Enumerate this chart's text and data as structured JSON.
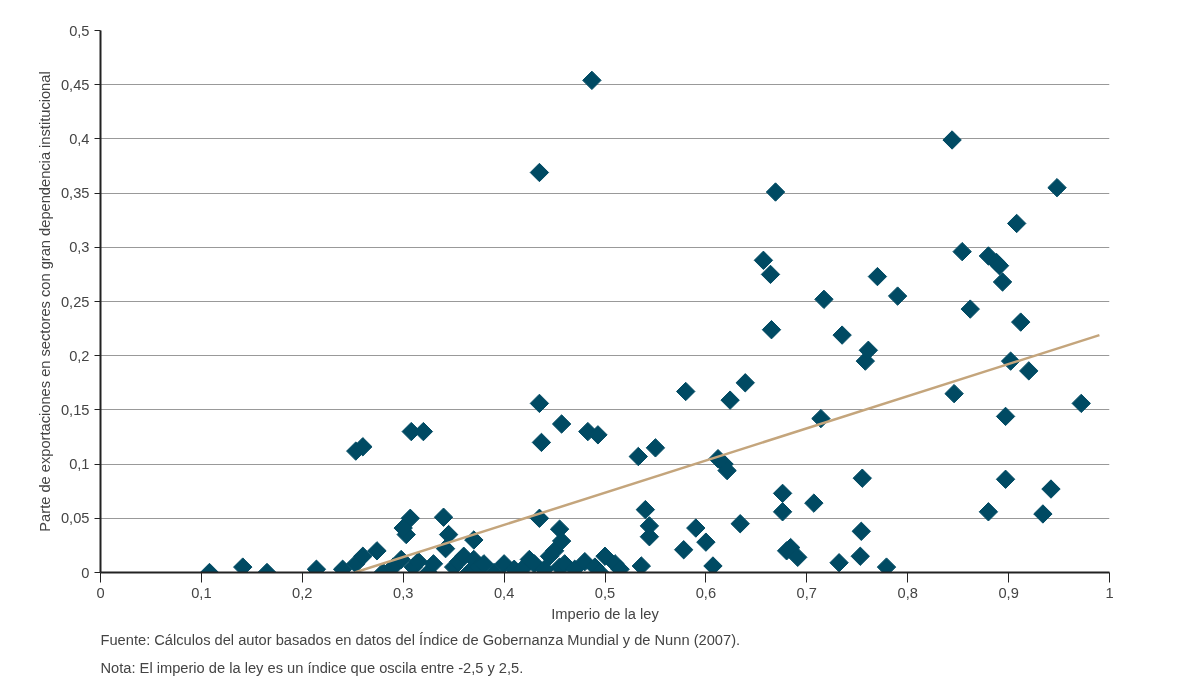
{
  "chart_data": {
    "type": "scatter",
    "xlabel": "Imperio de la ley",
    "ylabel": "Parte de exportaciones en sectores con gran dependencia institucional",
    "annotations": [
      "Fuente: Cálculos del autor basados en datos del Índice de Gobernanza Mundial y de Nunn (2007).",
      "Nota: El imperio de la ley es un índice que oscila entre -2,5 y 2,5."
    ],
    "xlim": [
      0,
      1
    ],
    "ylim": [
      0,
      0.5
    ],
    "xticks": [
      0,
      {
        "value": 0.1,
        "label": "0,1"
      },
      {
        "value": 0.2,
        "label": "0,2"
      },
      {
        "value": 0.3,
        "label": "0,3"
      },
      {
        "value": 0.4,
        "label": "0,4"
      },
      {
        "value": 0.5,
        "label": "0,5"
      },
      {
        "value": 0.6,
        "label": "0,6"
      },
      {
        "value": 0.7,
        "label": "0,7"
      },
      {
        "value": 0.8,
        "label": "0,8"
      },
      {
        "value": 0.9,
        "label": "0,9"
      },
      1
    ],
    "yticks": [
      0,
      {
        "value": 0.05,
        "label": "0,05"
      },
      {
        "value": 0.1,
        "label": "0,1"
      },
      {
        "value": 0.15,
        "label": "0,15"
      },
      {
        "value": 0.2,
        "label": "0,2"
      },
      {
        "value": 0.25,
        "label": "0,25"
      },
      {
        "value": 0.3,
        "label": "0,3"
      },
      {
        "value": 0.35,
        "label": "0,35"
      },
      {
        "value": 0.4,
        "label": "0,4"
      },
      {
        "value": 0.45,
        "label": "0,45"
      },
      {
        "value": 0.5,
        "label": "0,5"
      }
    ],
    "grid": "y",
    "marker": "diamond",
    "series": [
      {
        "color": "#004a63",
        "x": [
          0.108,
          0.141,
          0.165,
          0.214,
          0.24,
          0.253,
          0.26,
          0.253,
          0.26,
          0.274,
          0.28,
          0.29,
          0.298,
          0.303,
          0.307,
          0.3,
          0.308,
          0.32,
          0.31,
          0.315,
          0.325,
          0.33,
          0.34,
          0.345,
          0.342,
          0.35,
          0.355,
          0.36,
          0.365,
          0.37,
          0.37,
          0.375,
          0.38,
          0.39,
          0.4,
          0.41,
          0.42,
          0.425,
          0.43,
          0.44,
          0.445,
          0.45,
          0.455,
          0.46,
          0.47,
          0.48,
          0.49,
          0.495,
          0.5,
          0.51,
          0.515,
          0.435,
          0.487,
          0.435,
          0.437,
          0.435,
          0.457,
          0.455,
          0.457,
          0.483,
          0.493,
          0.533,
          0.55,
          0.54,
          0.544,
          0.544,
          0.536,
          0.578,
          0.58,
          0.59,
          0.6,
          0.607,
          0.612,
          0.618,
          0.621,
          0.624,
          0.634,
          0.639,
          0.657,
          0.664,
          0.665,
          0.669,
          0.676,
          0.676,
          0.68,
          0.684,
          0.691,
          0.707,
          0.714,
          0.717,
          0.732,
          0.735,
          0.753,
          0.754,
          0.755,
          0.758,
          0.761,
          0.77,
          0.779,
          0.79,
          0.844,
          0.846,
          0.854,
          0.862,
          0.88,
          0.88,
          0.888,
          0.891,
          0.894,
          0.897,
          0.897,
          0.902,
          0.908,
          0.912,
          0.92,
          0.934,
          0.942,
          0.948,
          0.972
        ],
        "values": [
          0,
          0.005,
          0,
          0.003,
          0.003,
          0.008,
          0.015,
          0.112,
          0.116,
          0.02,
          0,
          0.005,
          0.012,
          0.035,
          0.05,
          0.041,
          0.13,
          0.13,
          0.005,
          0.01,
          0,
          0.008,
          0.051,
          0.035,
          0.022,
          0.005,
          0.01,
          0.015,
          0,
          0.03,
          0.012,
          0.005,
          0.008,
          0,
          0.008,
          0.003,
          0.005,
          0.012,
          0.008,
          0.003,
          0.015,
          0.02,
          0.005,
          0.008,
          0.003,
          0.01,
          0.005,
          0,
          0.015,
          0.008,
          0.003,
          0.369,
          0.454,
          0.156,
          0.12,
          0.05,
          0.137,
          0.04,
          0.029,
          0.13,
          0.127,
          0.107,
          0.115,
          0.058,
          0.043,
          0.033,
          0.006,
          0.021,
          0.167,
          0.041,
          0.028,
          0.006,
          0.105,
          0.1,
          0.094,
          0.159,
          0.045,
          0.175,
          0.288,
          0.275,
          0.224,
          0.351,
          0.073,
          0.056,
          0.02,
          0.023,
          0.014,
          0.064,
          0.142,
          0.252,
          0.009,
          0.219,
          0.015,
          0.038,
          0.087,
          0.195,
          0.205,
          0.273,
          0.005,
          0.255,
          0.399,
          0.165,
          0.296,
          0.243,
          0.056,
          0.292,
          0.286,
          0.283,
          0.268,
          0.144,
          0.086,
          0.195,
          0.322,
          0.231,
          0.186,
          0.054,
          0.077,
          0.355,
          0.156
        ]
      },
      {
        "type": "line",
        "marker": "none",
        "color": "#c4a57c",
        "x": [
          0.252,
          0.99
        ],
        "values": [
          0.0,
          0.219
        ]
      }
    ]
  }
}
